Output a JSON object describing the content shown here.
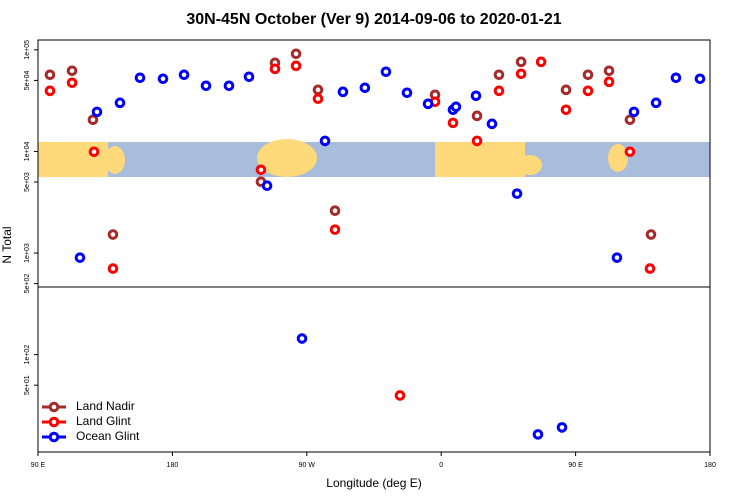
{
  "chart_data": {
    "type": "scatter",
    "title": "30N-45N October (Ver 9)   2014-09-06 to 2020-01-21",
    "x_label": "Longitude (deg E)",
    "y_label": "N Total",
    "log_y": true,
    "xlim": [
      90,
      540
    ],
    "xticks": [
      {
        "value": 90,
        "label": "90 E"
      },
      {
        "value": 180,
        "label": "180"
      },
      {
        "value": 270,
        "label": "90 W"
      },
      {
        "value": 360,
        "label": "0"
      },
      {
        "value": 450,
        "label": "90 E"
      },
      {
        "value": 540,
        "label": "180"
      }
    ],
    "ylim": [
      11,
      125000
    ],
    "yticks": [
      {
        "value": 100000,
        "label": "1e+05"
      },
      {
        "value": 50000,
        "label": "5e+04"
      },
      {
        "value": 10000,
        "label": "1e+04"
      },
      {
        "value": 5000,
        "label": "5e+03"
      },
      {
        "value": 1000,
        "label": "1e+03"
      },
      {
        "value": 500,
        "label": "5e+02"
      },
      {
        "value": 100,
        "label": "1e+02"
      },
      {
        "value": 50,
        "label": "5e+01"
      }
    ],
    "legend": "bottom-left",
    "series": [
      {
        "name": "Land Nadir",
        "color": "#a52a2a",
        "x": [
          98.0,
          112.8,
          126.8,
          140.2,
          239.3,
          248.7,
          262.8,
          277.5,
          288.9,
          355.9,
          384.0,
          398.7,
          413.5,
          443.6,
          458.3,
          472.4,
          486.4,
          500.5
        ],
        "values": [
          56800,
          62200,
          20500,
          1520,
          5030,
          74500,
          91400,
          40400,
          2610,
          36100,
          22400,
          56800,
          76200,
          40400,
          56800,
          62200,
          20500,
          1520
        ]
      },
      {
        "name": "Land Glint",
        "color": "#ff0000",
        "x": [
          98.0,
          112.8,
          127.5,
          140.2,
          239.3,
          248.7,
          262.8,
          277.5,
          288.9,
          332.4,
          355.9,
          367.9,
          384.0,
          398.7,
          413.5,
          426.9,
          443.6,
          458.3,
          472.4,
          486.4,
          499.8
        ],
        "values": [
          39500,
          47400,
          9930,
          703,
          6600,
          65000,
          69600,
          33000,
          1700,
          39.6,
          30800,
          19100,
          12700,
          39500,
          58100,
          76200,
          25700,
          39500,
          48400,
          9930,
          703
        ]
      },
      {
        "name": "Ocean Glint",
        "color": "#0000ff",
        "x": [
          118.1,
          129.5,
          144.9,
          158.3,
          173.7,
          187.8,
          202.5,
          217.9,
          231.3,
          243.4,
          266.8,
          282.2,
          294.2,
          308.9,
          323.0,
          337.1,
          351.2,
          367.9,
          369.9,
          383.3,
          394.0,
          410.8,
          424.8,
          440.9,
          477.7,
          489.1,
          503.9,
          517.2,
          533.3
        ],
        "values": [
          900,
          24500,
          30100,
          53100,
          51900,
          56800,
          44300,
          44300,
          54300,
          4600,
          144,
          12700,
          38600,
          42300,
          60800,
          37800,
          29400,
          25700,
          27500,
          35300,
          18700,
          3840,
          16.4,
          19.2,
          900,
          24500,
          30100,
          53100,
          51900
        ]
      }
    ]
  }
}
